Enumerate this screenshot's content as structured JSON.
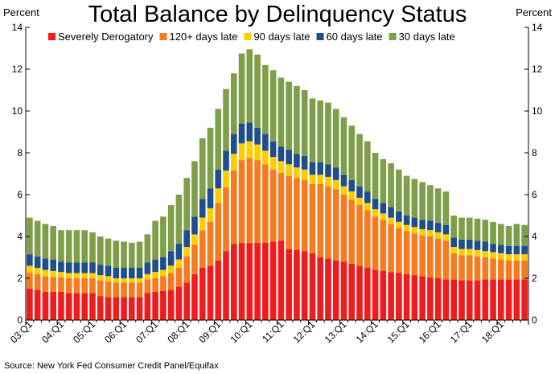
{
  "chart_data": {
    "type": "bar",
    "stacked": true,
    "title": "Total Balance by Delinquency Status",
    "ylabel_left": "Percent",
    "ylabel_right": "Percent",
    "ylim": [
      0,
      14
    ],
    "yticks": [
      0,
      2,
      4,
      6,
      8,
      10,
      12,
      14
    ],
    "grid": false,
    "legend_position": "top",
    "source": "Source: New York Fed Consumer Credit Panel/Equifax",
    "x_tick_labels": [
      "03:Q1",
      "04:Q1",
      "05:Q1",
      "06:Q1",
      "07:Q1",
      "08:Q1",
      "09:Q1",
      "10:Q1",
      "11:Q1",
      "12:Q1",
      "13:Q1",
      "14:Q1",
      "15:Q1",
      "16:Q1",
      "17:Q1",
      "18:Q1"
    ],
    "categories": [
      "03:Q1",
      "03:Q2",
      "03:Q3",
      "03:Q4",
      "04:Q1",
      "04:Q2",
      "04:Q3",
      "04:Q4",
      "05:Q1",
      "05:Q2",
      "05:Q3",
      "05:Q4",
      "06:Q1",
      "06:Q2",
      "06:Q3",
      "06:Q4",
      "07:Q1",
      "07:Q2",
      "07:Q3",
      "07:Q4",
      "08:Q1",
      "08:Q2",
      "08:Q3",
      "08:Q4",
      "09:Q1",
      "09:Q2",
      "09:Q3",
      "09:Q4",
      "10:Q1",
      "10:Q2",
      "10:Q3",
      "10:Q4",
      "11:Q1",
      "11:Q2",
      "11:Q3",
      "11:Q4",
      "12:Q1",
      "12:Q2",
      "12:Q3",
      "12:Q4",
      "13:Q1",
      "13:Q2",
      "13:Q3",
      "13:Q4",
      "14:Q1",
      "14:Q2",
      "14:Q3",
      "14:Q4",
      "15:Q1",
      "15:Q2",
      "15:Q3",
      "15:Q4",
      "16:Q1",
      "16:Q2",
      "16:Q3",
      "16:Q4",
      "17:Q1",
      "17:Q2",
      "17:Q3",
      "17:Q4",
      "18:Q1",
      "18:Q2",
      "18:Q3",
      "18:Q4"
    ],
    "series": [
      {
        "name": "Severely Derogatory",
        "color": "#ee1c1c",
        "values": [
          1.5,
          1.45,
          1.35,
          1.35,
          1.35,
          1.3,
          1.3,
          1.3,
          1.3,
          1.15,
          1.1,
          1.1,
          1.1,
          1.1,
          1.1,
          1.3,
          1.35,
          1.4,
          1.45,
          1.6,
          1.8,
          2.2,
          2.5,
          2.6,
          2.85,
          3.3,
          3.65,
          3.7,
          3.7,
          3.7,
          3.7,
          3.75,
          3.8,
          3.4,
          3.35,
          3.3,
          3.2,
          3.0,
          2.95,
          2.85,
          2.8,
          2.7,
          2.6,
          2.5,
          2.4,
          2.35,
          2.3,
          2.25,
          2.2,
          2.15,
          2.1,
          2.05,
          2.0,
          1.95,
          1.95,
          1.9,
          1.9,
          1.9,
          1.95,
          1.95,
          1.95,
          1.95,
          1.95,
          1.95
        ]
      },
      {
        "name": "120+ days late",
        "color": "#f47b20",
        "values": [
          0.75,
          0.75,
          0.75,
          0.7,
          0.7,
          0.7,
          0.7,
          0.7,
          0.7,
          0.75,
          0.75,
          0.7,
          0.7,
          0.7,
          0.7,
          0.65,
          0.65,
          0.7,
          0.8,
          0.9,
          1.25,
          1.4,
          1.8,
          2.1,
          2.75,
          3.05,
          3.5,
          3.95,
          4.05,
          3.95,
          3.75,
          3.45,
          3.25,
          3.5,
          3.45,
          3.4,
          3.3,
          3.5,
          3.45,
          3.4,
          3.2,
          3.05,
          2.9,
          2.75,
          2.55,
          2.45,
          2.3,
          2.15,
          2.05,
          2.0,
          1.95,
          1.95,
          1.9,
          1.85,
          1.25,
          1.2,
          1.2,
          1.15,
          1.05,
          1.0,
          0.95,
          0.9,
          0.9,
          0.9
        ]
      },
      {
        "name": "90 days late",
        "color": "#ffcc00",
        "values": [
          0.35,
          0.3,
          0.3,
          0.3,
          0.25,
          0.25,
          0.25,
          0.25,
          0.25,
          0.25,
          0.25,
          0.2,
          0.2,
          0.2,
          0.2,
          0.25,
          0.3,
          0.3,
          0.35,
          0.4,
          0.45,
          0.5,
          0.6,
          0.65,
          0.7,
          0.8,
          0.8,
          0.8,
          0.8,
          0.75,
          0.65,
          0.6,
          0.55,
          0.55,
          0.5,
          0.5,
          0.45,
          0.45,
          0.45,
          0.45,
          0.4,
          0.4,
          0.35,
          0.35,
          0.35,
          0.3,
          0.3,
          0.3,
          0.3,
          0.3,
          0.3,
          0.3,
          0.3,
          0.3,
          0.3,
          0.3,
          0.3,
          0.3,
          0.3,
          0.3,
          0.3,
          0.3,
          0.3,
          0.3
        ]
      },
      {
        "name": "60 days late",
        "color": "#1f4e8c",
        "values": [
          0.55,
          0.55,
          0.55,
          0.55,
          0.5,
          0.5,
          0.5,
          0.5,
          0.5,
          0.5,
          0.5,
          0.5,
          0.5,
          0.5,
          0.5,
          0.55,
          0.6,
          0.6,
          0.7,
          0.75,
          0.8,
          0.85,
          0.9,
          0.95,
          0.9,
          0.95,
          0.95,
          0.95,
          0.9,
          0.8,
          0.8,
          0.75,
          0.7,
          0.7,
          0.65,
          0.65,
          0.6,
          0.6,
          0.6,
          0.6,
          0.55,
          0.55,
          0.55,
          0.55,
          0.5,
          0.5,
          0.5,
          0.5,
          0.45,
          0.45,
          0.45,
          0.45,
          0.45,
          0.45,
          0.45,
          0.45,
          0.45,
          0.45,
          0.45,
          0.4,
          0.4,
          0.4,
          0.4,
          0.4
        ]
      },
      {
        "name": "30 days late",
        "color": "#7f9e4a",
        "values": [
          1.75,
          1.7,
          1.65,
          1.6,
          1.5,
          1.55,
          1.55,
          1.55,
          1.45,
          1.35,
          1.3,
          1.3,
          1.25,
          1.2,
          1.25,
          1.35,
          1.85,
          1.95,
          2.2,
          2.35,
          2.5,
          2.65,
          2.9,
          2.9,
          2.9,
          2.95,
          2.9,
          3.35,
          3.5,
          3.5,
          3.3,
          3.4,
          3.3,
          3.25,
          3.25,
          3.15,
          3.05,
          2.95,
          2.95,
          2.8,
          2.75,
          2.6,
          2.5,
          2.4,
          2.2,
          2.1,
          2.1,
          2.0,
          1.9,
          1.85,
          1.8,
          1.7,
          1.65,
          1.6,
          1.05,
          1.05,
          1.05,
          1.05,
          1.05,
          1.05,
          1.0,
          0.95,
          1.05,
          1.0
        ]
      }
    ]
  }
}
